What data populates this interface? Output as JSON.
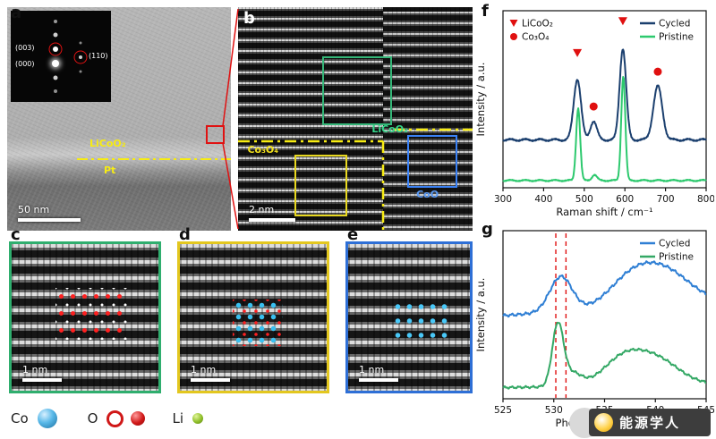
{
  "figure": {
    "watermark": "能源学人"
  },
  "panels": {
    "a": {
      "label": "a",
      "scale_bar": "50 nm",
      "film_label": "LiCoO₂",
      "substrate_label": "Pt",
      "diffraction_spots": [
        "(003)",
        "(000)",
        "(110)"
      ]
    },
    "b": {
      "label": "b",
      "scale_bar": "2 nm",
      "region_licoo2": "LiCoO₂",
      "region_co3o4": "Co₃O₄",
      "region_coo": "CoO"
    },
    "c": {
      "label": "c",
      "scale_bar": "1 nm"
    },
    "d": {
      "label": "d",
      "scale_bar": "1 nm"
    },
    "e": {
      "label": "e",
      "scale_bar": "1 nm"
    },
    "f": {
      "label": "f"
    },
    "g": {
      "label": "g"
    }
  },
  "atom_legend": [
    {
      "symbol": "Co",
      "type": "sphere-large",
      "color": "#3da8d8"
    },
    {
      "symbol": "O",
      "type": "ring-and-sphere",
      "color": "#d01818"
    },
    {
      "symbol": "Li",
      "type": "sphere-small",
      "color": "#8fbf2a"
    }
  ],
  "chart_data": [
    {
      "type": "line",
      "panel": "f",
      "xlabel": "Raman shift / cm⁻¹",
      "ylabel": "Intensity / a.u.",
      "xlim": [
        300,
        800
      ],
      "ylim": [
        0,
        1.22
      ],
      "xticks": [
        300,
        400,
        500,
        600,
        700,
        800
      ],
      "grid": false,
      "legend_position": "top-right",
      "series": [
        {
          "name": "Cycled",
          "color": "#1b3f6e",
          "baseline": 0.33,
          "noise": 0.006,
          "noise_freq": 4.1,
          "peaks": [
            {
              "center": 483,
              "height": 0.42,
              "width": 9
            },
            {
              "center": 523,
              "height": 0.13,
              "width": 8
            },
            {
              "center": 595,
              "height": 0.63,
              "width": 8
            },
            {
              "center": 681,
              "height": 0.37,
              "width": 11
            }
          ]
        },
        {
          "name": "Pristine",
          "color": "#2dc96e",
          "baseline": 0.05,
          "noise": 0.004,
          "noise_freq": 4.1,
          "peaks": [
            {
              "center": 485,
              "height": 0.5,
              "width": 5
            },
            {
              "center": 525,
              "height": 0.04,
              "width": 6
            },
            {
              "center": 596,
              "height": 0.72,
              "width": 5
            }
          ]
        }
      ],
      "markers": [
        {
          "x": 483,
          "y": 0.9,
          "shape": "triangle-down",
          "color": "#e01010",
          "label": "LiCoO₂"
        },
        {
          "x": 595,
          "y": 1.12,
          "shape": "triangle-down",
          "color": "#e01010",
          "label": "LiCoO₂"
        },
        {
          "x": 523,
          "y": 0.56,
          "shape": "circle",
          "color": "#e01010",
          "label": "Co₃O₄"
        },
        {
          "x": 681,
          "y": 0.8,
          "shape": "circle",
          "color": "#e01010",
          "label": "Co₃O₄"
        }
      ],
      "marker_legend": [
        {
          "label": "LiCoO₂",
          "shape": "triangle-down",
          "color": "#e01010"
        },
        {
          "label": "Co₃O₄",
          "shape": "circle",
          "color": "#e01010"
        }
      ]
    },
    {
      "type": "line",
      "panel": "g",
      "xlabel": "Photon energy / eV",
      "ylabel": "Intensity / a.u.",
      "xlim": [
        525,
        545
      ],
      "ylim": [
        0,
        1.05
      ],
      "xticks": [
        525,
        530,
        535,
        540,
        545
      ],
      "grid": false,
      "legend_position": "top-right",
      "series": [
        {
          "name": "Cycled",
          "color": "#2f7fd4",
          "baseline": 0.52,
          "slope": 0.004,
          "noise": 0.006,
          "noise_freq": 9.0,
          "peaks": [
            {
              "center": 530.7,
              "height": 0.22,
              "width": 1.1
            },
            {
              "center": 537.5,
              "height": 0.16,
              "width": 2.2
            },
            {
              "center": 541.0,
              "height": 0.2,
              "width": 2.5
            }
          ]
        },
        {
          "name": "Pristine",
          "color": "#34a865",
          "baseline": 0.07,
          "slope": 0.001,
          "noise": 0.005,
          "noise_freq": 9.0,
          "peaks": [
            {
              "center": 530.4,
              "height": 0.38,
              "width": 0.55
            },
            {
              "center": 531.8,
              "height": 0.08,
              "width": 0.9
            },
            {
              "center": 536.8,
              "height": 0.16,
              "width": 2.0
            },
            {
              "center": 540.2,
              "height": 0.15,
              "width": 2.2
            }
          ]
        }
      ],
      "vlines": [
        {
          "x": 530.2,
          "color": "#e01010"
        },
        {
          "x": 531.2,
          "color": "#e01010"
        }
      ]
    }
  ]
}
